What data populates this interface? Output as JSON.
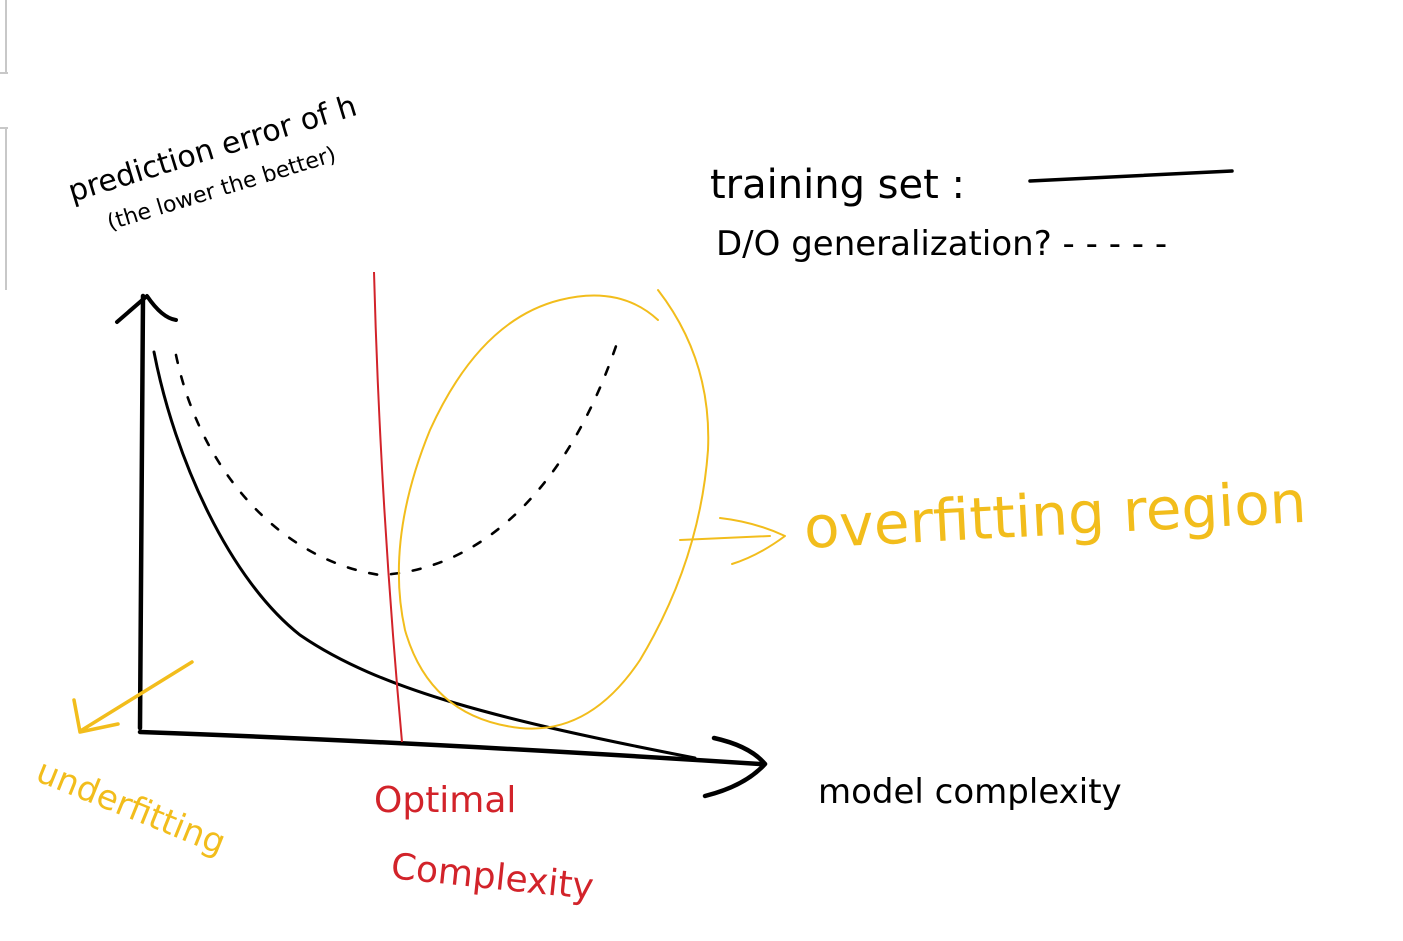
{
  "ylabel": {
    "line1": "prediction error of h",
    "line2": "(the lower the better)"
  },
  "legend": {
    "training": "training set :",
    "generalization": "D/O generalization? - - - - -"
  },
  "xlabel": "model complexity",
  "annotations": {
    "overfitting": "overfitting region",
    "underfitting": "underfitting",
    "optimal_line1": "Optimal",
    "optimal_line2": "Complexity"
  },
  "colors": {
    "ink": "#000000",
    "highlight": "#f2bd1c",
    "optimal": "#d2232a"
  },
  "chart_data": {
    "type": "line",
    "xlabel": "model complexity",
    "ylabel": "prediction error of h (the lower the better)",
    "series": [
      {
        "name": "training set",
        "style": "solid",
        "x": [
          0.0,
          0.05,
          0.15,
          0.3,
          0.45,
          0.6,
          0.8,
          1.0
        ],
        "y": [
          1.0,
          0.82,
          0.55,
          0.32,
          0.2,
          0.14,
          0.08,
          0.05
        ]
      },
      {
        "name": "D/O generalization?",
        "style": "dashed",
        "x": [
          0.0,
          0.1,
          0.25,
          0.4,
          0.5,
          0.65,
          0.8,
          1.0
        ],
        "y": [
          0.95,
          0.7,
          0.5,
          0.4,
          0.42,
          0.55,
          0.7,
          1.0
        ]
      }
    ],
    "legend": "top-right",
    "grid": false
  }
}
